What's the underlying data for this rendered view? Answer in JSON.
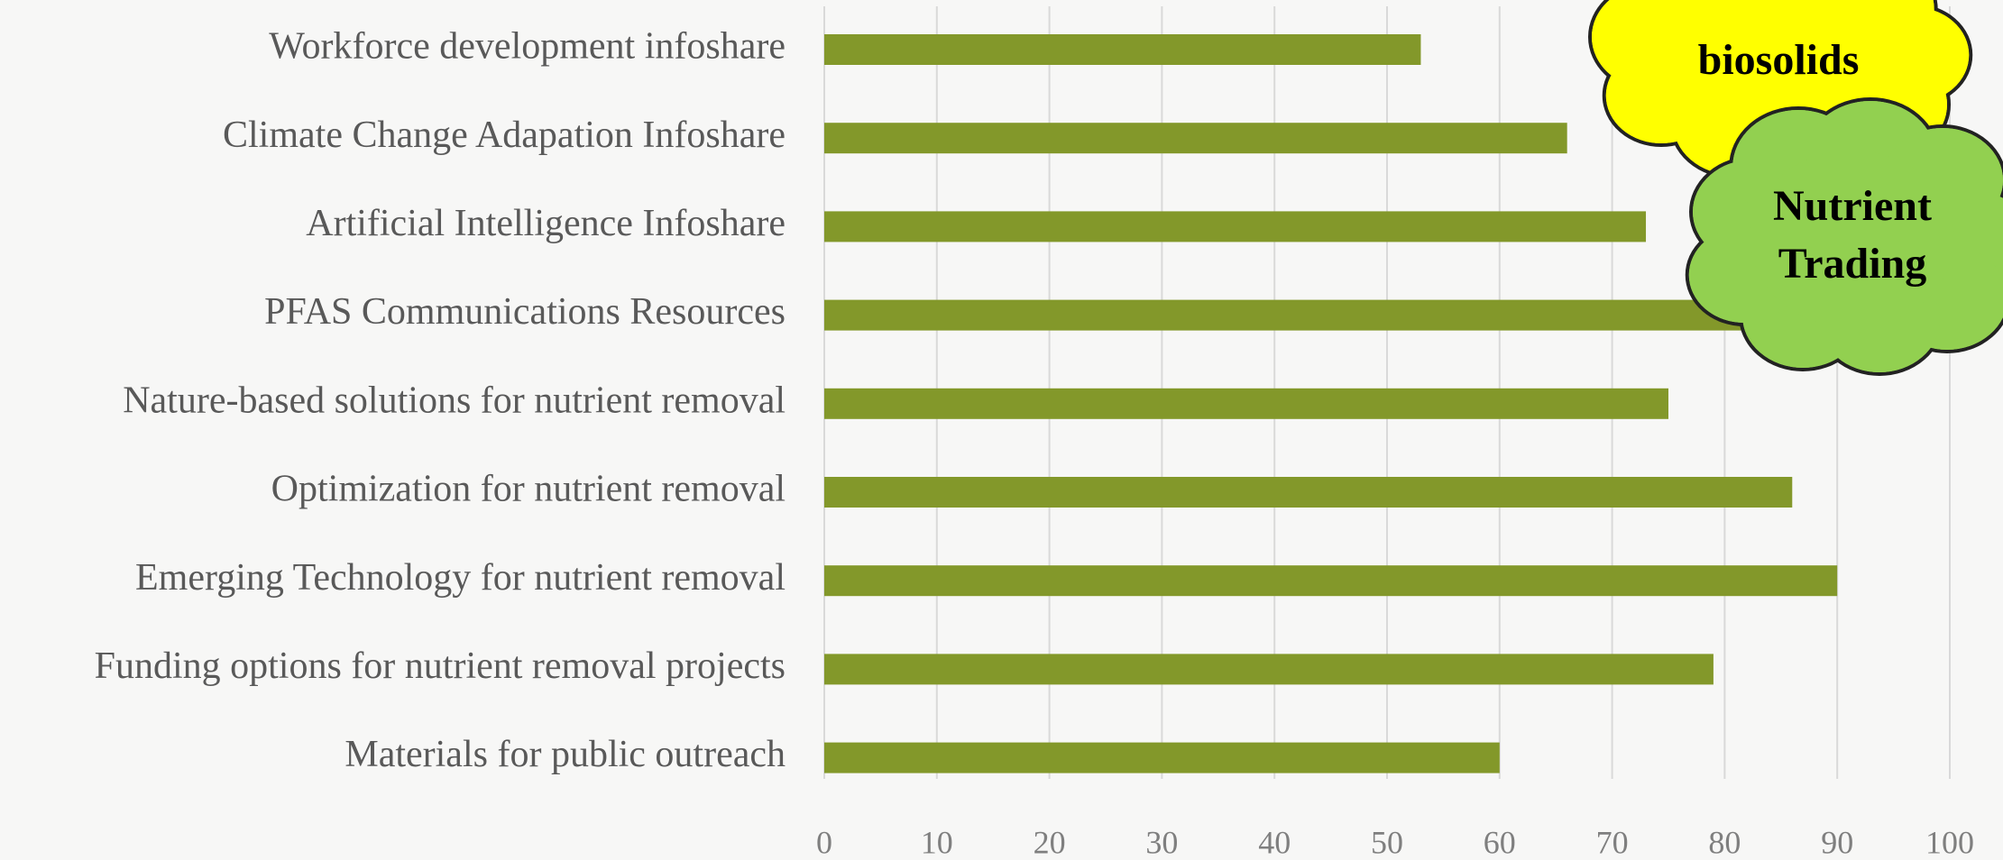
{
  "chart_data": {
    "type": "hbar",
    "categories": [
      "Workforce development infoshare",
      "Climate Change Adapation Infoshare",
      "Artificial Intelligence Infoshare",
      "PFAS Communications Resources",
      "Nature-based solutions for nutrient removal",
      "Optimization for nutrient removal ",
      "Emerging Technology for nutrient removal",
      "Funding options for nutrient removal projects",
      "Materials for public outreach"
    ],
    "values": [
      53,
      66,
      73,
      88,
      75,
      86,
      90,
      79,
      60
    ],
    "color": "#83982a",
    "xlim": [
      0,
      100
    ],
    "xticks": [
      0,
      10,
      20,
      30,
      40,
      50,
      60,
      70,
      80,
      90,
      100
    ],
    "grid": true,
    "annotations": [
      {
        "lines": [
          "biosolids"
        ],
        "color": "#ffff00"
      },
      {
        "lines": [
          "Nutrient",
          "Trading"
        ],
        "color": "#92d050"
      }
    ]
  }
}
